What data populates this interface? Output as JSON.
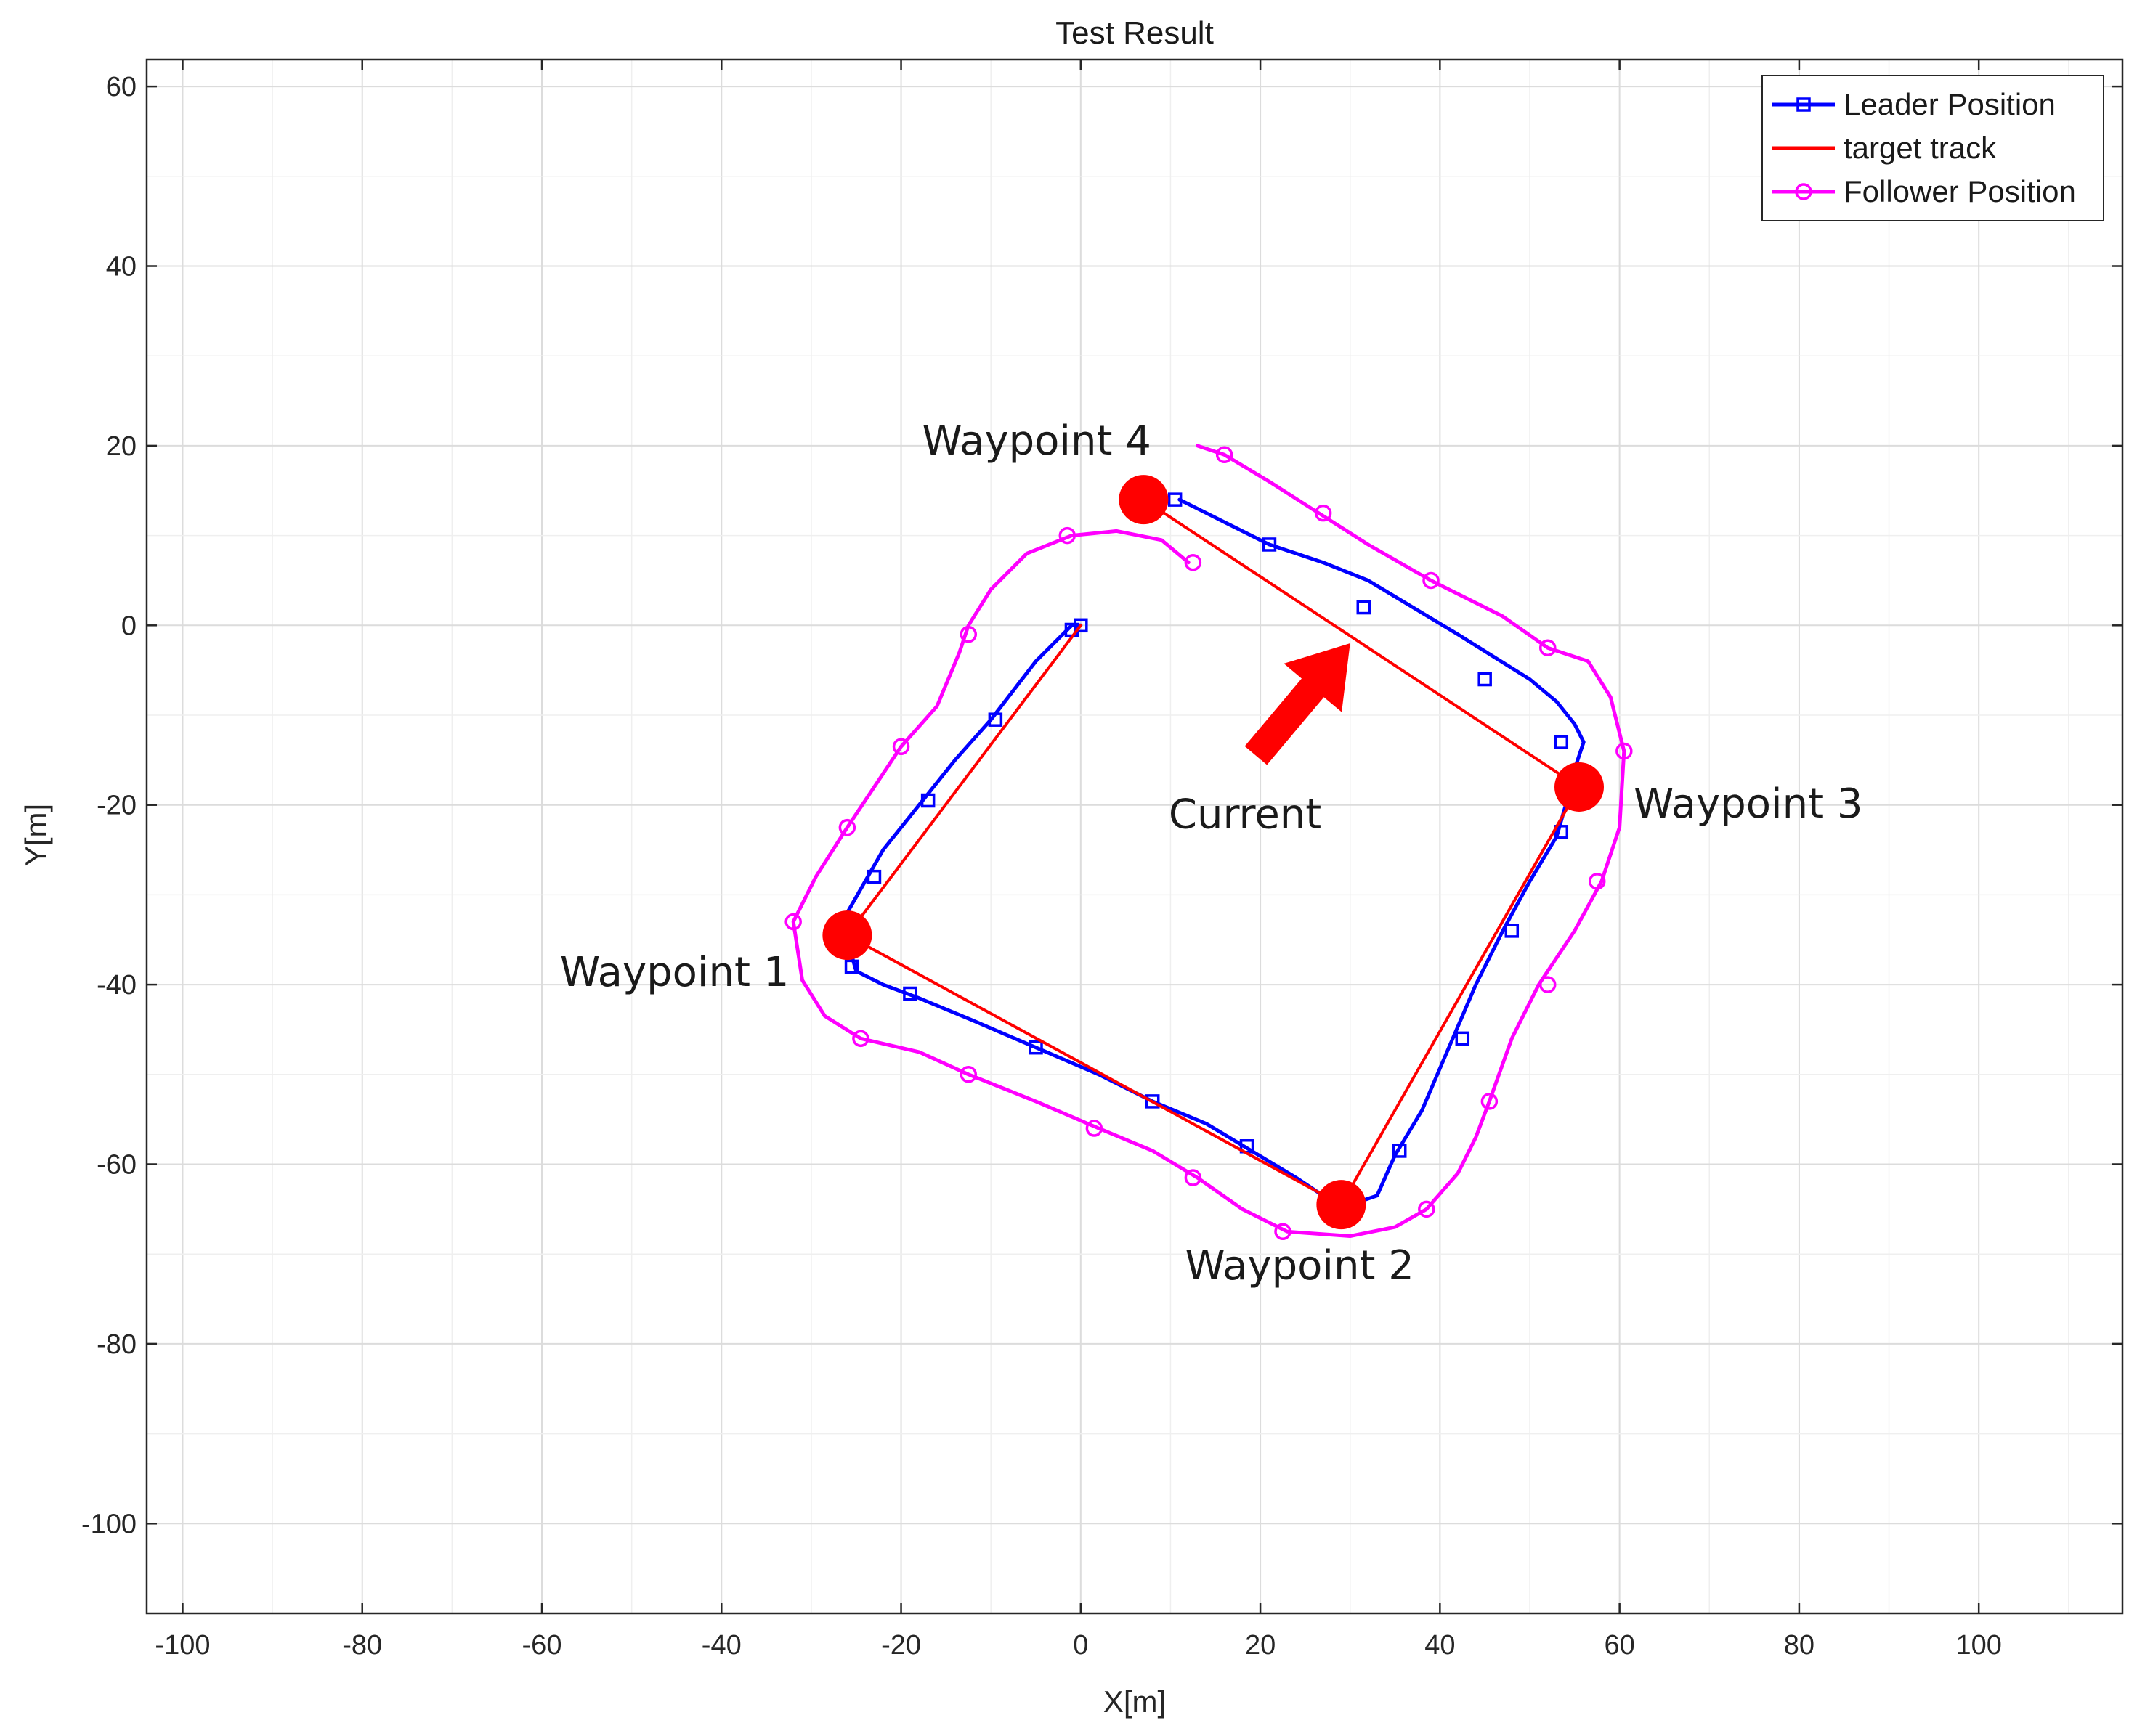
{
  "chart_data": {
    "type": "line",
    "title": "Test Result",
    "xlabel": "X[m]",
    "ylabel": "Y[m]",
    "xlim": [
      -104,
      116
    ],
    "ylim": [
      -110,
      63
    ],
    "xticks": [
      -100,
      -80,
      -60,
      -40,
      -20,
      0,
      20,
      40,
      60,
      80,
      100
    ],
    "yticks": [
      60,
      40,
      20,
      0,
      -20,
      -40,
      -60,
      -80,
      -100
    ],
    "grid": true,
    "legend_position": "top-right",
    "series": [
      {
        "name": "Leader Position",
        "color": "#0000ff",
        "marker": "square",
        "x": [
          0,
          -1,
          -5,
          -10,
          -14,
          -18,
          -22,
          -24,
          -26,
          -26,
          -25,
          -22,
          -18,
          -12,
          -5,
          2,
          8,
          14,
          19,
          24,
          27,
          30,
          33,
          35,
          38,
          41,
          44,
          47,
          50,
          53,
          54,
          55,
          56,
          55,
          53,
          50,
          46,
          42,
          37,
          32,
          27,
          21,
          16,
          11
        ],
        "y": [
          0,
          0,
          -4,
          -10.5,
          -15,
          -20,
          -25,
          -28.5,
          -32,
          -35,
          -38.5,
          -40,
          -41.5,
          -44,
          -47,
          -50,
          -53,
          -55.5,
          -58.5,
          -61.5,
          -63.5,
          -64.5,
          -63.5,
          -59,
          -54,
          -47,
          -40,
          -34,
          -28.5,
          -23.5,
          -20,
          -16,
          -13,
          -11,
          -8.5,
          -6,
          -3.5,
          -1,
          2,
          5,
          7,
          9,
          11.5,
          14
        ],
        "marker_x": [
          0,
          -1,
          -9.5,
          -17,
          -23,
          -25.5,
          -19,
          -5,
          8,
          18.5,
          35.5,
          42.5,
          48,
          53.5,
          53.5,
          45,
          31.5,
          21,
          10.5
        ],
        "marker_y": [
          0,
          -0.5,
          -10.5,
          -19.5,
          -28,
          -38,
          -41,
          -47,
          -53,
          -58,
          -58.5,
          -46,
          -34,
          -23,
          -13,
          -6,
          2,
          9,
          14
        ]
      },
      {
        "name": "target track",
        "color": "#ff0000",
        "marker": "none",
        "x": [
          0,
          -26,
          29,
          55.5,
          7
        ],
        "y": [
          0,
          -34.5,
          -64.5,
          -18,
          14
        ]
      },
      {
        "name": "Follower Position",
        "color": "#ff00ff",
        "marker": "circle",
        "x": [
          12,
          9,
          4,
          -1,
          -6,
          -10,
          -12.5,
          -13.5,
          -16,
          -20,
          -23,
          -26,
          -29.5,
          -32,
          -31,
          -28.5,
          -24.5,
          -18,
          -12.5,
          -5,
          2,
          8,
          13,
          18,
          23,
          30,
          35,
          38.5,
          42,
          44,
          45.5,
          48,
          51,
          55,
          58,
          60,
          60.5,
          59,
          56.5,
          52,
          47,
          39,
          32,
          26.5,
          21,
          16,
          13
        ],
        "y": [
          7,
          9.5,
          10.5,
          10,
          8,
          4,
          0,
          -3,
          -9,
          -13.5,
          -18,
          -22.5,
          -28,
          -33,
          -39.5,
          -43.5,
          -46,
          -47.5,
          -50,
          -53,
          -56,
          -58.5,
          -61.5,
          -65,
          -67.5,
          -68,
          -67,
          -65,
          -61,
          -57,
          -53,
          -46,
          -40,
          -34,
          -28.5,
          -22.5,
          -14,
          -8,
          -4,
          -2.5,
          1,
          5,
          9,
          12.5,
          16,
          19,
          20
        ],
        "marker_x": [
          12.5,
          -1.5,
          -12.5,
          -20,
          -26,
          -32,
          -24.5,
          -12.5,
          1.5,
          12.5,
          22.5,
          38.5,
          45.5,
          52,
          57.5,
          60.5,
          52,
          39,
          27,
          16
        ],
        "marker_y": [
          7,
          10,
          -1,
          -13.5,
          -22.5,
          -33,
          -46,
          -50,
          -56,
          -61.5,
          -67.5,
          -65,
          -53,
          -40,
          -28.5,
          -14,
          -2.5,
          5,
          12.5,
          19
        ]
      }
    ],
    "waypoints": [
      {
        "label": "Waypoint 1",
        "x": -26,
        "y": -34.5
      },
      {
        "label": "Waypoint 2",
        "x": 29,
        "y": -64.5
      },
      {
        "label": "Waypoint 3",
        "x": 55.5,
        "y": -18
      },
      {
        "label": "Waypoint 4",
        "x": 7,
        "y": 14
      }
    ],
    "annotations": [
      {
        "text": "Current",
        "arrow_from": [
          19.5,
          -14.5
        ],
        "arrow_to": [
          30,
          -2
        ],
        "color": "#ff0000"
      }
    ]
  }
}
